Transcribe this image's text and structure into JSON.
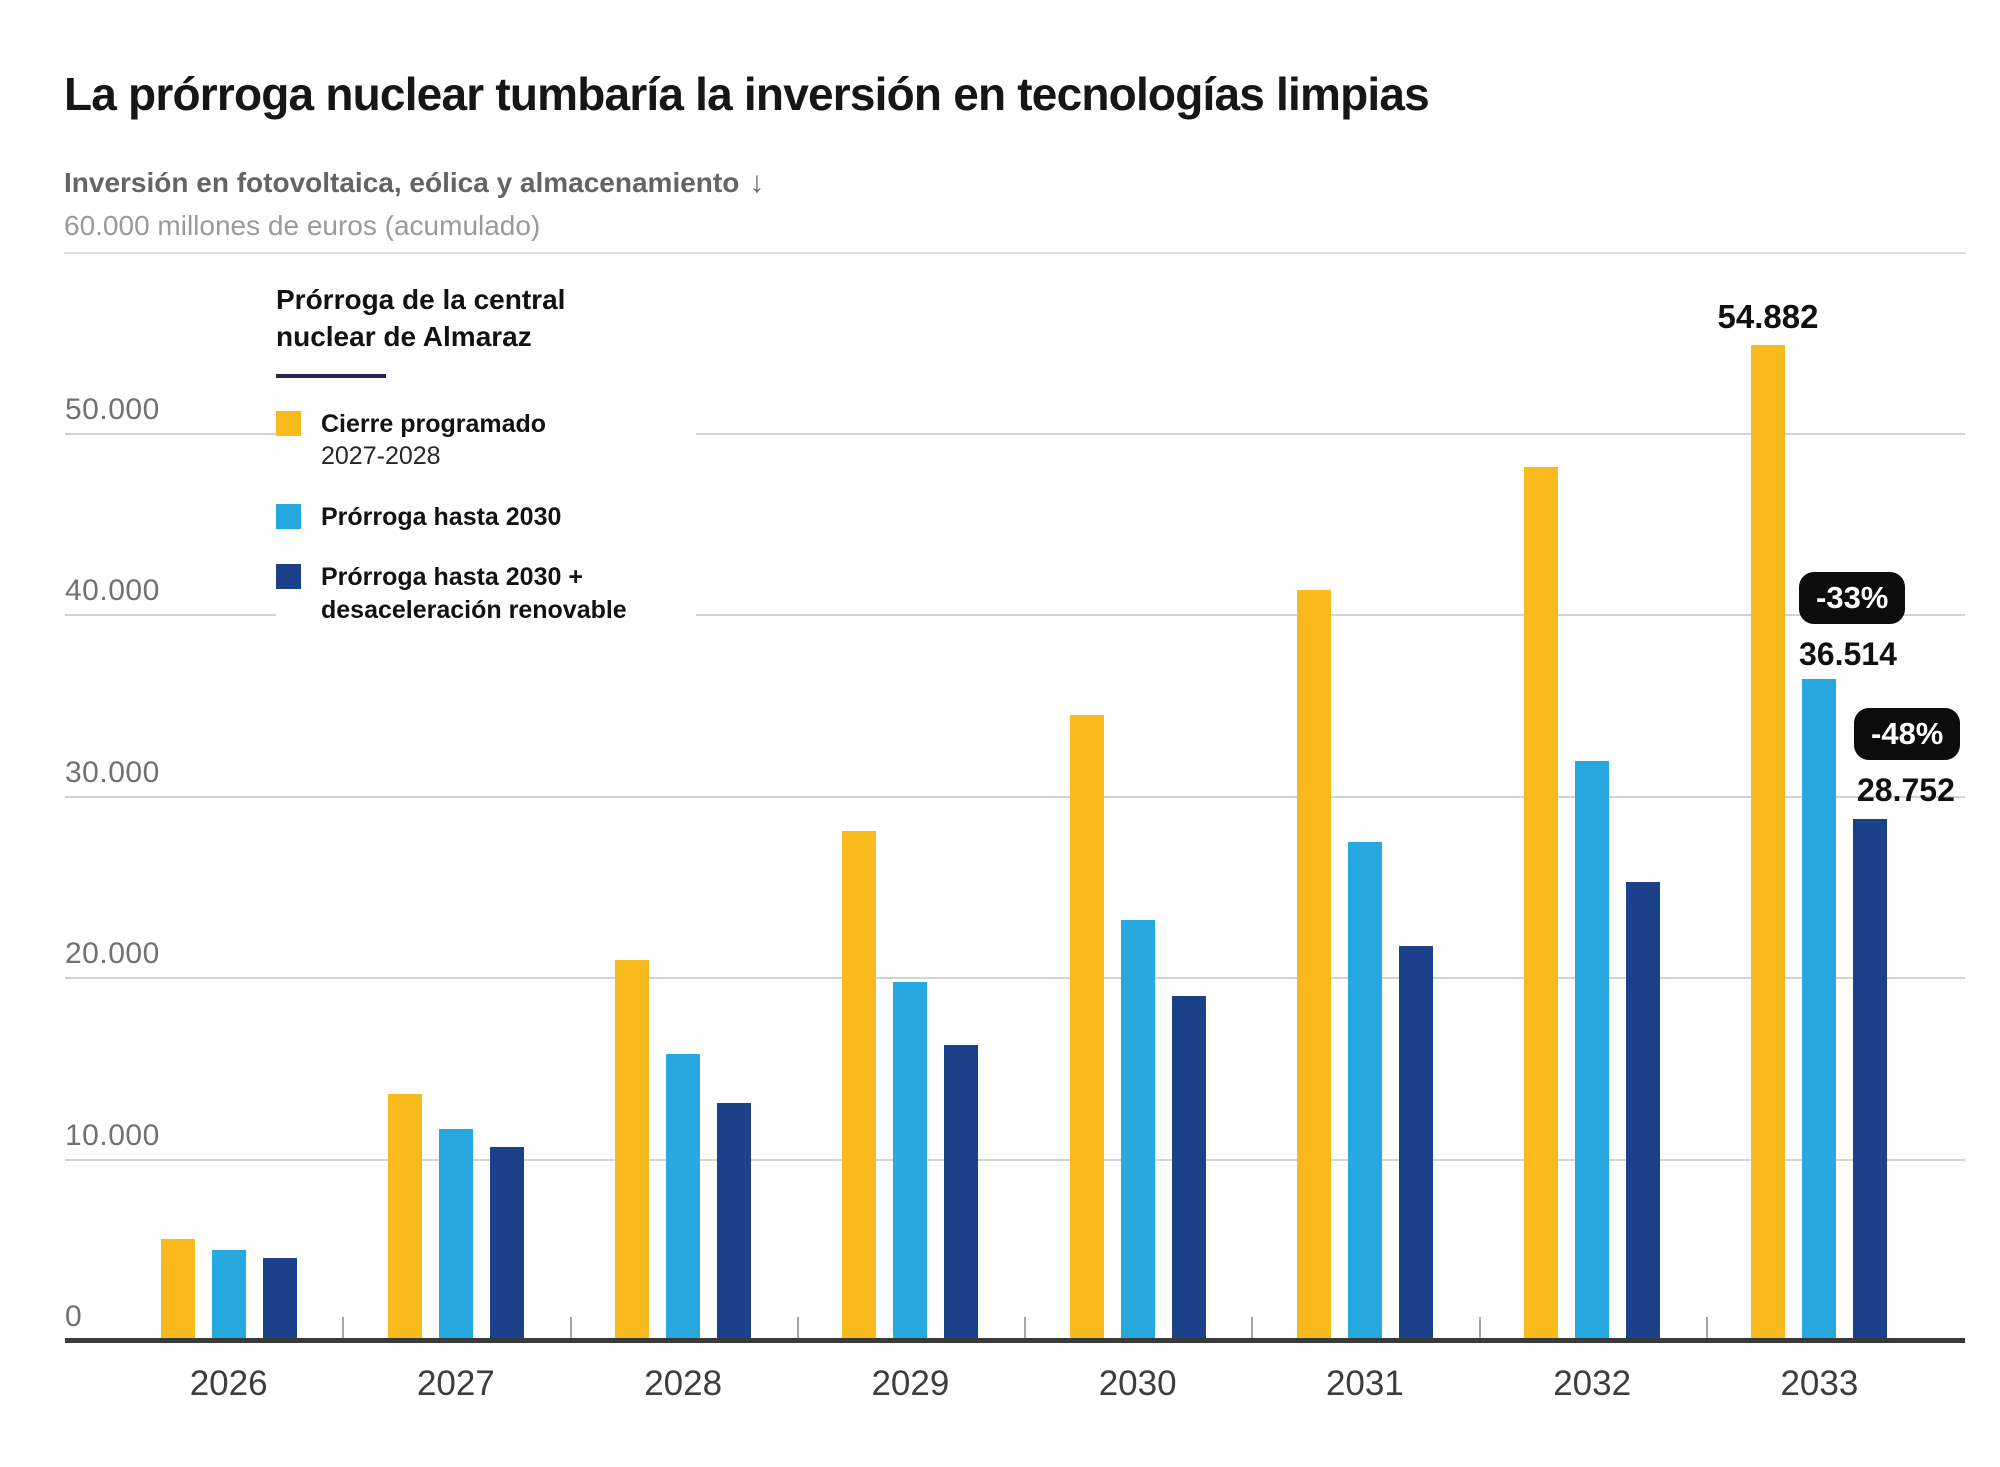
{
  "header": {
    "title": "La prórroga nuclear tumbaría la inversión en tecnologías limpias",
    "subtitle_bold": "Inversión en fotovoltaica, eólica y almacenamiento",
    "arrow_down_icon": "↓",
    "subtitle_light": "60.000 millones de euros (acumulado)"
  },
  "legend": {
    "title": "Prórroga de la central nuclear de Almaraz",
    "items": [
      {
        "label": "Cierre programado",
        "sublabel": "2027-2028",
        "color": "#F9BA1E"
      },
      {
        "label": "Prórroga hasta 2030",
        "sublabel": "",
        "color": "#27A9E0"
      },
      {
        "label": "Prórroga hasta 2030 + desaceleración renovable",
        "sublabel": "",
        "color": "#1A4189"
      }
    ]
  },
  "chart_data": {
    "type": "bar",
    "title": "La prórroga nuclear tumbaría la inversión en tecnologías limpias",
    "ylabel": "Inversión en fotovoltaica, eólica y almacenamiento (millones de euros, acumulado)",
    "categories": [
      "2026",
      "2027",
      "2028",
      "2029",
      "2030",
      "2031",
      "2032",
      "2033"
    ],
    "series": [
      {
        "name": "Cierre programado 2027-2028",
        "color": "#F9BA1E",
        "values": [
          5600,
          13600,
          21000,
          28100,
          34500,
          41400,
          48200,
          54882
        ]
      },
      {
        "name": "Prórroga hasta 2030",
        "color": "#27A9E0",
        "values": [
          5000,
          11700,
          15800,
          19800,
          23200,
          27500,
          32000,
          36514
        ]
      },
      {
        "name": "Prórroga hasta 2030 + desaceleración renovable",
        "color": "#1A4189",
        "values": [
          4600,
          10700,
          13100,
          16300,
          19000,
          21800,
          25300,
          28752
        ]
      }
    ],
    "yticks": [
      0,
      10000,
      20000,
      30000,
      40000,
      50000
    ],
    "ytick_labels": [
      "0",
      "10.000",
      "20.000",
      "30.000",
      "40.000",
      "50.000"
    ],
    "ylim": [
      0,
      55500
    ],
    "grid": true,
    "legend_position": "upper-left-inside",
    "annotations": [
      {
        "text": "54.882",
        "type": "value",
        "target": "2033 Cierre programado"
      },
      {
        "text": "-33%",
        "type": "badge",
        "target": "2033 Prórroga hasta 2030"
      },
      {
        "text": "36.514",
        "type": "value",
        "target": "2033 Prórroga hasta 2030"
      },
      {
        "text": "-48%",
        "type": "badge",
        "target": "2033 Prórroga hasta 2030 + desaceleración renovable"
      },
      {
        "text": "28.752",
        "type": "value",
        "target": "2033 Prórroga hasta 2030 + desaceleración renovable"
      }
    ],
    "colors": {
      "grid": "#d2d2d2",
      "axis": "#3a3a3a",
      "badge_bg": "#0c0c0c",
      "badge_text": "#ffffff",
      "legend_underline": "#2e2150"
    }
  }
}
